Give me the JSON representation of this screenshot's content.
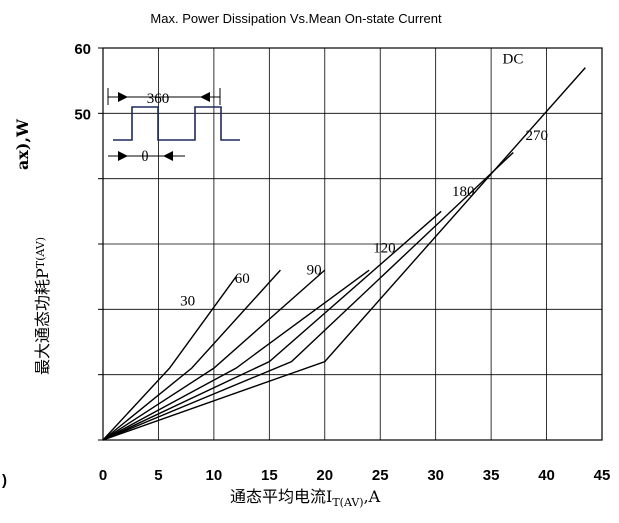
{
  "chart_data": {
    "type": "line",
    "title": "Max. Power Dissipation Vs.Mean On-state Current",
    "xlabel": "通态平均电流I",
    "xlabel_sub": "T(AV)",
    "xlabel_unit": ",A",
    "ylabel": "最大通态功耗P",
    "ylabel_sub": "T(AV)",
    "ylabel_unit": "ax),W",
    "xlim": [
      0,
      45
    ],
    "ylim": [
      0,
      60
    ],
    "xticks": [
      0,
      5,
      10,
      15,
      20,
      25,
      30,
      35,
      40,
      45
    ],
    "yticks_labeled": [
      "60",
      "50"
    ],
    "grid": true,
    "inset": {
      "period_label": "360",
      "pulse_label": "θ"
    },
    "series": [
      {
        "name": "30",
        "x": [
          0,
          6,
          12
        ],
        "y": [
          0,
          11,
          25
        ]
      },
      {
        "name": "60",
        "x": [
          0,
          8,
          16
        ],
        "y": [
          0,
          11,
          26
        ]
      },
      {
        "name": "90",
        "x": [
          0,
          10,
          20
        ],
        "y": [
          0,
          11,
          26
        ]
      },
      {
        "name": "120",
        "x": [
          0,
          12,
          24
        ],
        "y": [
          0,
          11,
          26
        ]
      },
      {
        "name": "180",
        "x": [
          0,
          15,
          30.5
        ],
        "y": [
          0,
          12,
          35
        ]
      },
      {
        "name": "270",
        "x": [
          0,
          17,
          37
        ],
        "y": [
          0,
          12,
          44
        ]
      },
      {
        "name": "DC",
        "x": [
          0,
          20,
          43.5
        ],
        "y": [
          0,
          12,
          57
        ]
      }
    ],
    "curve_labels": [
      "30",
      "60",
      "90",
      "120",
      "180",
      "270",
      "DC"
    ]
  }
}
